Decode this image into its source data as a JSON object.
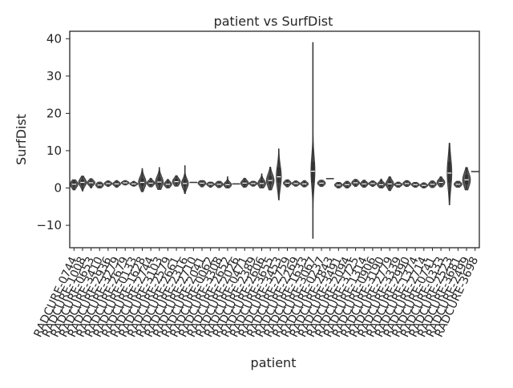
{
  "chart_data": {
    "type": "violin",
    "title": "patient vs SurfDist",
    "xlabel": "patient",
    "ylabel": "SurfDist",
    "ylim": [
      -16,
      42
    ],
    "yticks": [
      -10,
      0,
      10,
      20,
      30,
      40
    ],
    "ytick_labels": [
      "−10",
      "0",
      "10",
      "20",
      "30",
      "40"
    ],
    "grid": false,
    "legend": "none",
    "colors": {
      "violin_fill": "#595959",
      "box": "#333333",
      "median": "#ffffff",
      "frame": "#262626",
      "text": "#262626"
    },
    "categories": [
      "RADCURE-0744",
      "RADCURE-1008",
      "RADCURE-0653",
      "RADCURE-3410",
      "RADCURE-2936",
      "RADCURE-3279",
      "RADCURE-2679",
      "RADCURE-0133",
      "RADCURE-1628",
      "RADCURE-2744",
      "RADCURE-3103",
      "RADCURE-2579",
      "RADCURE-2661",
      "RADCURE-2316",
      "RADCURE-2710",
      "RADCURE-2041",
      "RADCURE-0062",
      "RADCURE-3308",
      "RADCURE-2652",
      "RADCURE-2026",
      "RADCURE-0471",
      "RADCURE-2389",
      "RADCURE-2606",
      "RADCURE-3655",
      "RADCURE-3453",
      "RADCURE-2759",
      "RADCURE-2269",
      "RADCURE-1633",
      "RADCURE-3067",
      "RADCURE-0237",
      "RADCURE-2843",
      "RADCURE-3491",
      "RADCURE-2094",
      "RADCURE-3725",
      "RADCURE-1314",
      "RADCURE-0906",
      "RADCURE-3190",
      "RADCURE-2779",
      "RADCURE-3339",
      "RADCURE-2990",
      "RADCURE-1374",
      "RADCURE-2714",
      "RADCURE-0741",
      "RADCURE-0333",
      "RADCURE-2523",
      "RADCURE-3681",
      "RADCURE-2499",
      "RADCURE-3698"
    ],
    "values": [
      {
        "min": -0.5,
        "q1": 0.5,
        "median": 1.0,
        "q3": 1.7,
        "max": 2.2
      },
      {
        "min": -0.8,
        "q1": 0.8,
        "median": 1.5,
        "q3": 2.2,
        "max": 3.2
      },
      {
        "min": 0.0,
        "q1": 1.0,
        "median": 1.4,
        "q3": 1.9,
        "max": 2.5
      },
      {
        "min": 0.0,
        "q1": 0.4,
        "median": 0.8,
        "q3": 1.2,
        "max": 1.6
      },
      {
        "min": 0.4,
        "q1": 0.9,
        "median": 1.2,
        "q3": 1.5,
        "max": 1.9
      },
      {
        "min": 0.2,
        "q1": 0.8,
        "median": 1.1,
        "q3": 1.5,
        "max": 2.0
      },
      {
        "min": 0.8,
        "q1": 1.2,
        "median": 1.4,
        "q3": 1.7,
        "max": 2.0
      },
      {
        "min": 0.5,
        "q1": 0.9,
        "median": 1.1,
        "q3": 1.4,
        "max": 1.8
      },
      {
        "min": -1.0,
        "q1": 0.6,
        "median": 1.5,
        "q3": 2.6,
        "max": 5.2
      },
      {
        "min": 0.3,
        "q1": 0.9,
        "median": 1.3,
        "q3": 1.8,
        "max": 2.6
      },
      {
        "min": -0.4,
        "q1": 0.8,
        "median": 1.6,
        "q3": 2.8,
        "max": 5.5
      },
      {
        "min": 0.0,
        "q1": 0.6,
        "median": 1.0,
        "q3": 1.5,
        "max": 2.3
      },
      {
        "min": 0.5,
        "q1": 1.2,
        "median": 1.7,
        "q3": 2.4,
        "max": 3.3
      },
      {
        "min": -1.5,
        "q1": 0.5,
        "median": 1.2,
        "q3": 2.2,
        "max": 6.0
      },
      {
        "min": 1.3,
        "q1": 1.4,
        "median": 1.5,
        "q3": 1.6,
        "max": 1.7
      },
      {
        "min": 0.3,
        "q1": 0.9,
        "median": 1.3,
        "q3": 1.7,
        "max": 2.0
      },
      {
        "min": 0.2,
        "q1": 0.7,
        "median": 1.0,
        "q3": 1.3,
        "max": 1.6
      },
      {
        "min": 0.1,
        "q1": 0.6,
        "median": 1.0,
        "q3": 1.4,
        "max": 1.8
      },
      {
        "min": 0.0,
        "q1": 0.5,
        "median": 0.9,
        "q3": 1.4,
        "max": 3.0
      },
      {
        "min": 0.9,
        "q1": 1.0,
        "median": 1.1,
        "q3": 1.2,
        "max": 1.3
      },
      {
        "min": 0.2,
        "q1": 0.8,
        "median": 1.3,
        "q3": 1.8,
        "max": 2.6
      },
      {
        "min": 0.5,
        "q1": 0.9,
        "median": 1.2,
        "q3": 1.5,
        "max": 1.8
      },
      {
        "min": 0.0,
        "q1": 0.7,
        "median": 1.2,
        "q3": 2.0,
        "max": 3.8
      },
      {
        "min": -0.5,
        "q1": 1.0,
        "median": 2.0,
        "q3": 3.3,
        "max": 5.6
      },
      {
        "min": -3.2,
        "q1": 1.5,
        "median": 3.0,
        "q3": 5.5,
        "max": 10.5
      },
      {
        "min": 0.3,
        "q1": 0.9,
        "median": 1.3,
        "q3": 1.7,
        "max": 2.2
      },
      {
        "min": 0.5,
        "q1": 0.9,
        "median": 1.2,
        "q3": 1.5,
        "max": 1.9
      },
      {
        "min": 0.3,
        "q1": 0.8,
        "median": 1.1,
        "q3": 1.5,
        "max": 2.0
      },
      {
        "min": -13.5,
        "q1": 1.5,
        "median": 4.5,
        "q3": 7.0,
        "max": 39.0
      },
      {
        "min": 0.4,
        "q1": 0.9,
        "median": 1.3,
        "q3": 1.7,
        "max": 2.1
      },
      {
        "min": 2.4,
        "q1": 2.45,
        "median": 2.5,
        "q3": 2.55,
        "max": 2.6
      },
      {
        "min": 0.0,
        "q1": 0.5,
        "median": 0.8,
        "q3": 1.2,
        "max": 1.5
      },
      {
        "min": 0.0,
        "q1": 0.5,
        "median": 0.9,
        "q3": 1.3,
        "max": 1.8
      },
      {
        "min": 0.4,
        "q1": 1.0,
        "median": 1.4,
        "q3": 1.8,
        "max": 2.3
      },
      {
        "min": 0.2,
        "q1": 0.7,
        "median": 1.1,
        "q3": 1.5,
        "max": 2.1
      },
      {
        "min": 0.4,
        "q1": 0.9,
        "median": 1.2,
        "q3": 1.5,
        "max": 1.9
      },
      {
        "min": 0.0,
        "q1": 0.5,
        "median": 0.9,
        "q3": 1.4,
        "max": 2.4
      },
      {
        "min": -0.7,
        "q1": 0.5,
        "median": 1.1,
        "q3": 1.9,
        "max": 3.0
      },
      {
        "min": 0.2,
        "q1": 0.6,
        "median": 0.9,
        "q3": 1.2,
        "max": 1.6
      },
      {
        "min": 0.4,
        "q1": 0.9,
        "median": 1.2,
        "q3": 1.6,
        "max": 2.0
      },
      {
        "min": 0.2,
        "q1": 0.6,
        "median": 0.9,
        "q3": 1.2,
        "max": 1.5
      },
      {
        "min": 0.0,
        "q1": 0.4,
        "median": 0.7,
        "q3": 1.0,
        "max": 1.4
      },
      {
        "min": 0.1,
        "q1": 0.6,
        "median": 1.0,
        "q3": 1.4,
        "max": 1.9
      },
      {
        "min": 0.3,
        "q1": 1.0,
        "median": 1.5,
        "q3": 2.1,
        "max": 3.0
      },
      {
        "min": -4.5,
        "q1": 1.5,
        "median": 4.0,
        "q3": 7.0,
        "max": 12.0
      },
      {
        "min": 0.2,
        "q1": 0.6,
        "median": 1.0,
        "q3": 1.4,
        "max": 1.8
      },
      {
        "min": -0.5,
        "q1": 1.0,
        "median": 2.2,
        "q3": 3.5,
        "max": 5.5
      },
      {
        "min": 4.3,
        "q1": 4.35,
        "median": 4.4,
        "q3": 4.45,
        "max": 4.5
      }
    ]
  }
}
